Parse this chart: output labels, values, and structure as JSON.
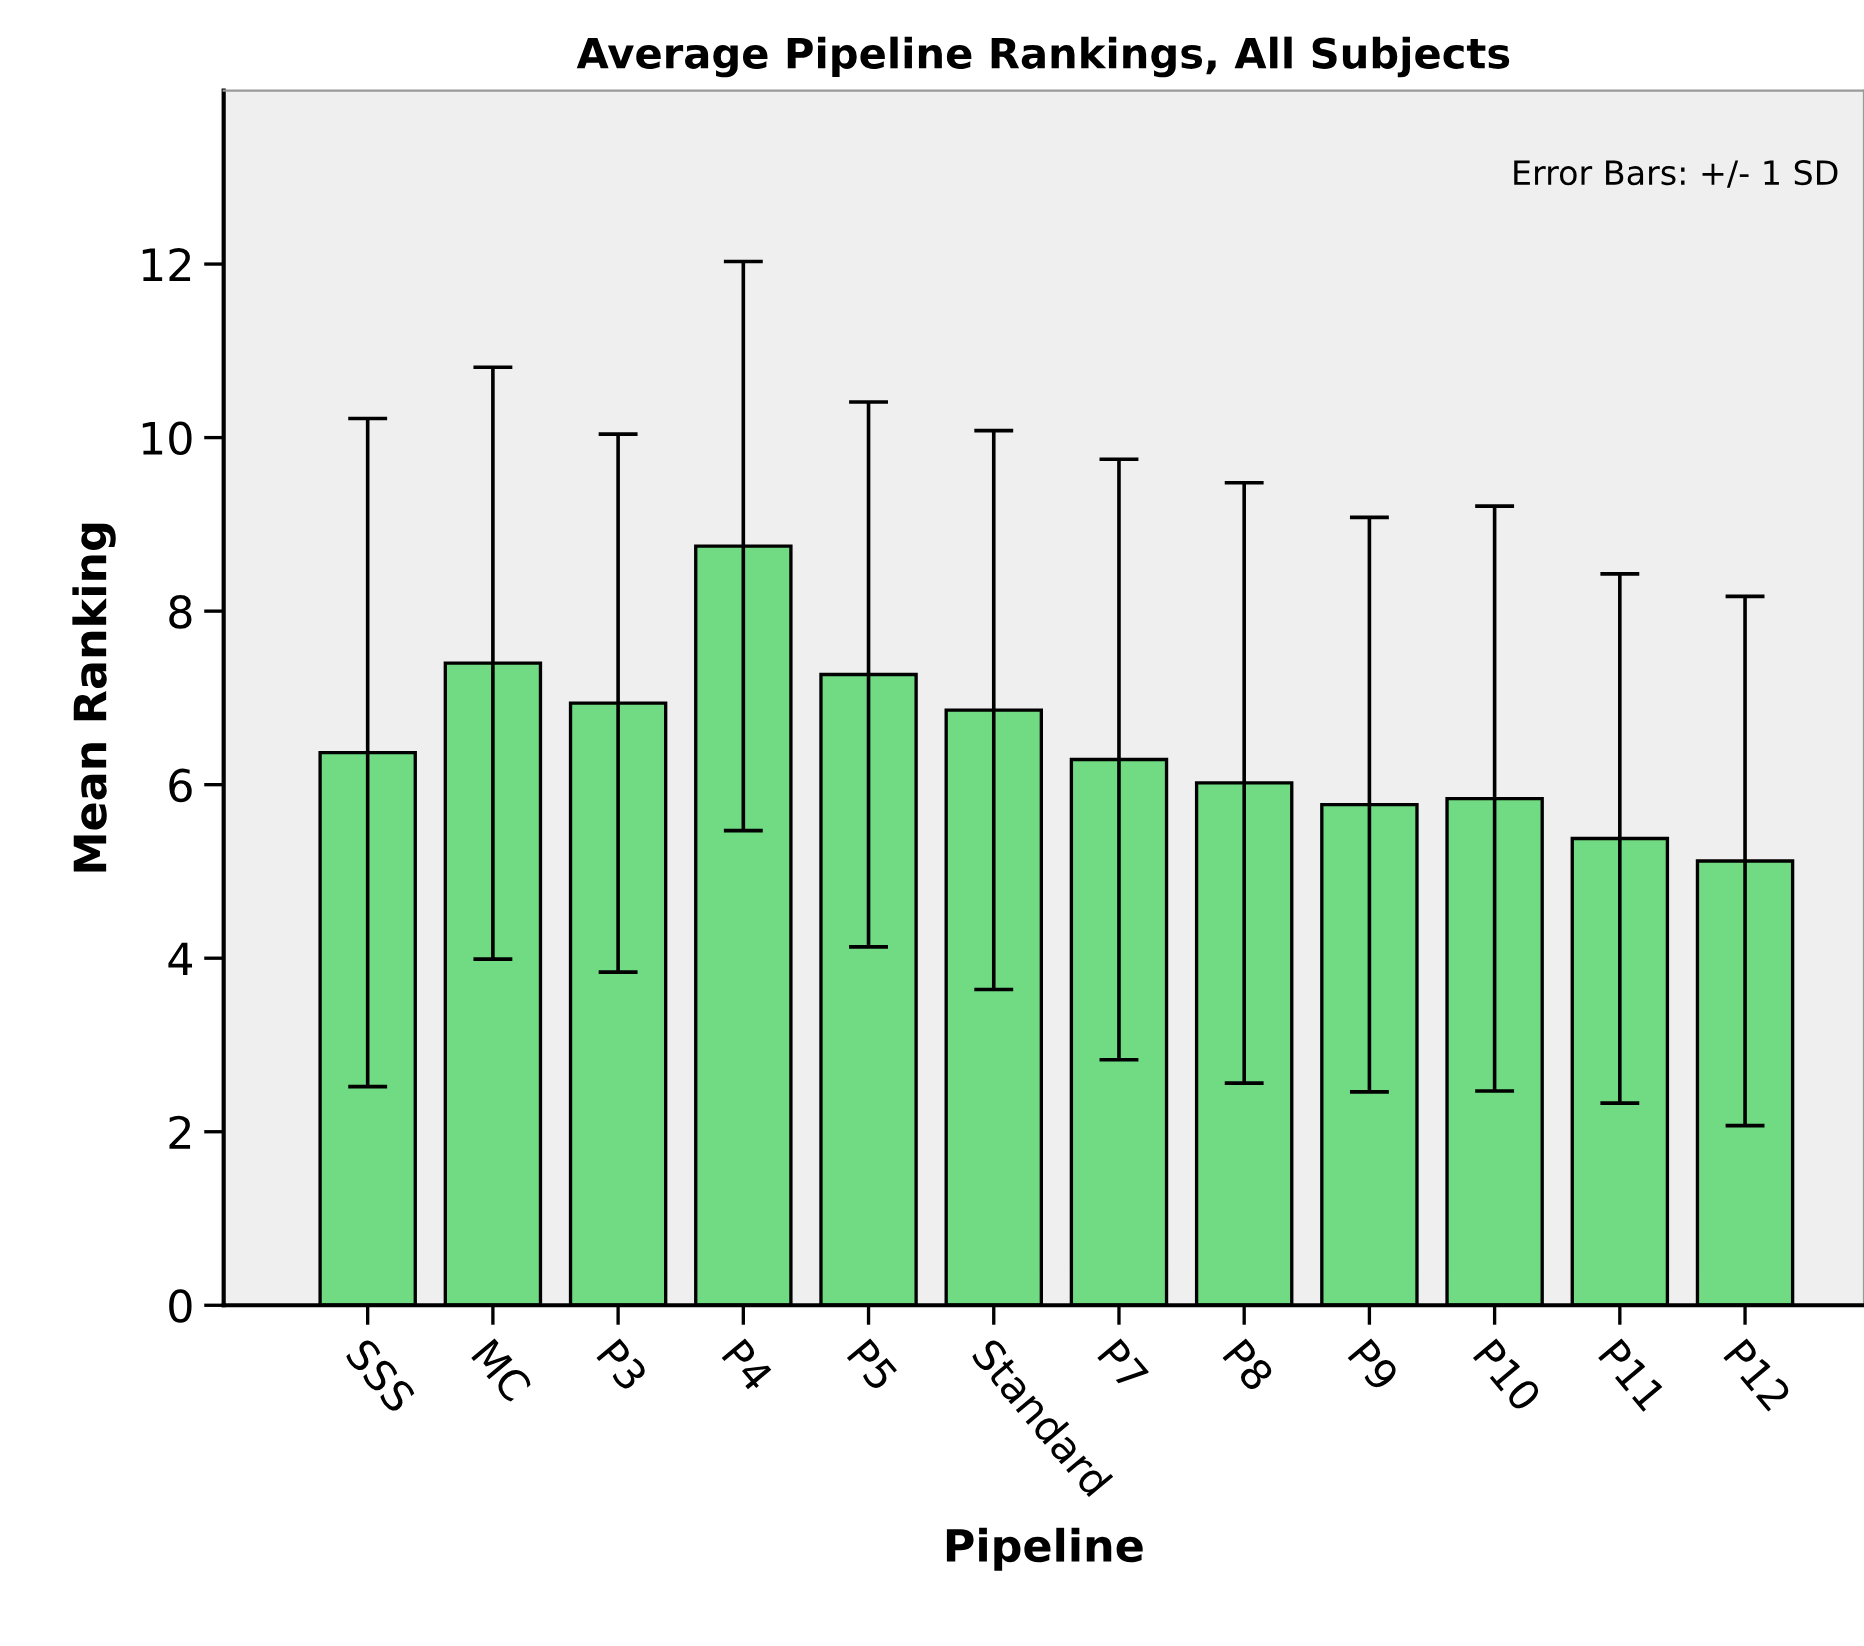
{
  "chart_data": {
    "type": "bar",
    "title": "Average Pipeline Rankings, All Subjects",
    "xlabel": "Pipeline",
    "ylabel": "Mean Ranking",
    "categories": [
      "SSS",
      "MC",
      "P3",
      "P4",
      "P5",
      "Standard",
      "P7",
      "P8",
      "P9",
      "P10",
      "P11",
      "P12"
    ],
    "values": [
      6.37,
      7.4,
      6.94,
      8.75,
      7.27,
      6.86,
      6.29,
      6.02,
      5.77,
      5.84,
      5.38,
      5.12
    ],
    "errors": [
      3.85,
      3.41,
      3.1,
      3.28,
      3.14,
      3.22,
      3.46,
      3.46,
      3.31,
      3.37,
      3.05,
      3.05
    ],
    "color": "#70db82",
    "ylim": [
      0,
      14
    ],
    "yticks": [
      0,
      2,
      4,
      6,
      8,
      10,
      12
    ],
    "grid": false,
    "annotations": [
      "Error Bars: +/- 1 SD"
    ]
  }
}
